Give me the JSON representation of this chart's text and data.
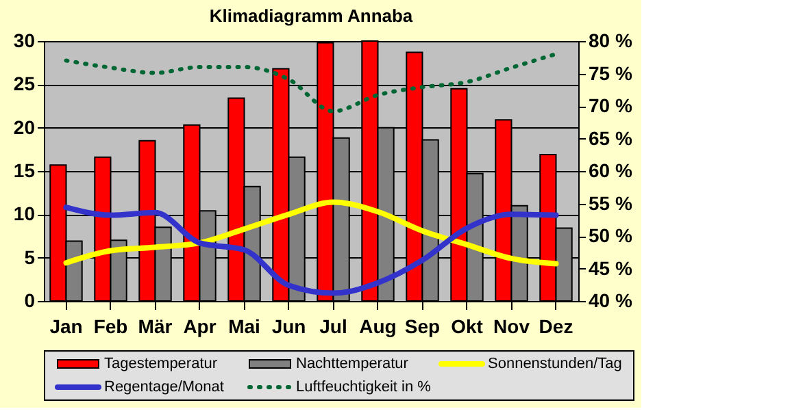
{
  "chart_data": {
    "type": "bar",
    "title": "Klimadiagramm Annaba",
    "categories": [
      "Jan",
      "Feb",
      "Mär",
      "Apr",
      "Mai",
      "Jun",
      "Jul",
      "Aug",
      "Sep",
      "Okt",
      "Nov",
      "Dez"
    ],
    "series": [
      {
        "name": "Tagestemperatur",
        "color": "#ff0000",
        "values": [
          15.7,
          16.6,
          18.5,
          20.3,
          23.4,
          26.8,
          29.8,
          30,
          28.7,
          24.5,
          20.9,
          16.9
        ]
      },
      {
        "name": "Nachttemperatur",
        "color": "#808080",
        "values": [
          6.9,
          7.0,
          8.5,
          10.4,
          13.2,
          16.6,
          18.8,
          20.0,
          18.6,
          14.7,
          11.0,
          8.4
        ]
      },
      {
        "name": "Sonnenstunden/Tag",
        "type": "line",
        "color": "#ffff00",
        "line_style": "solid",
        "values": [
          4.4,
          5.8,
          6.2,
          6.7,
          8.3,
          10.0,
          11.4,
          10.3,
          8.1,
          6.5,
          4.9,
          4.3
        ]
      },
      {
        "name": "Regentage/Monat",
        "type": "line",
        "color": "#3333cc",
        "line_style": "solid",
        "values": [
          10.8,
          9.9,
          10.2,
          6.7,
          5.9,
          1.8,
          0.9,
          2.1,
          4.7,
          8.4,
          10.0,
          9.9
        ]
      },
      {
        "name": "Luftfeuchtigkeit in %",
        "type": "line",
        "axis": "y2",
        "color": "#006633",
        "line_style": "dotted",
        "values": [
          77.0,
          75.9,
          75.1,
          76.0,
          76.0,
          74.1,
          69.2,
          71.7,
          72.9,
          73.7,
          75.9,
          78.0
        ]
      }
    ],
    "ylim": [
      0,
      30
    ],
    "yticks": [
      0,
      5,
      10,
      15,
      20,
      25,
      30
    ],
    "y2lim": [
      40,
      80
    ],
    "y2ticks": [
      {
        "value": 40,
        "label": "40 %"
      },
      {
        "value": 45,
        "label": "45 %"
      },
      {
        "value": 50,
        "label": "50 %"
      },
      {
        "value": 55,
        "label": "55 %"
      },
      {
        "value": 60,
        "label": "60 %"
      },
      {
        "value": 65,
        "label": "65 %"
      },
      {
        "value": 70,
        "label": "70 %"
      },
      {
        "value": 75,
        "label": "75 %"
      },
      {
        "value": 80,
        "label": "80 %"
      }
    ],
    "grid": "y",
    "legend": "bottom",
    "marker": "none"
  }
}
